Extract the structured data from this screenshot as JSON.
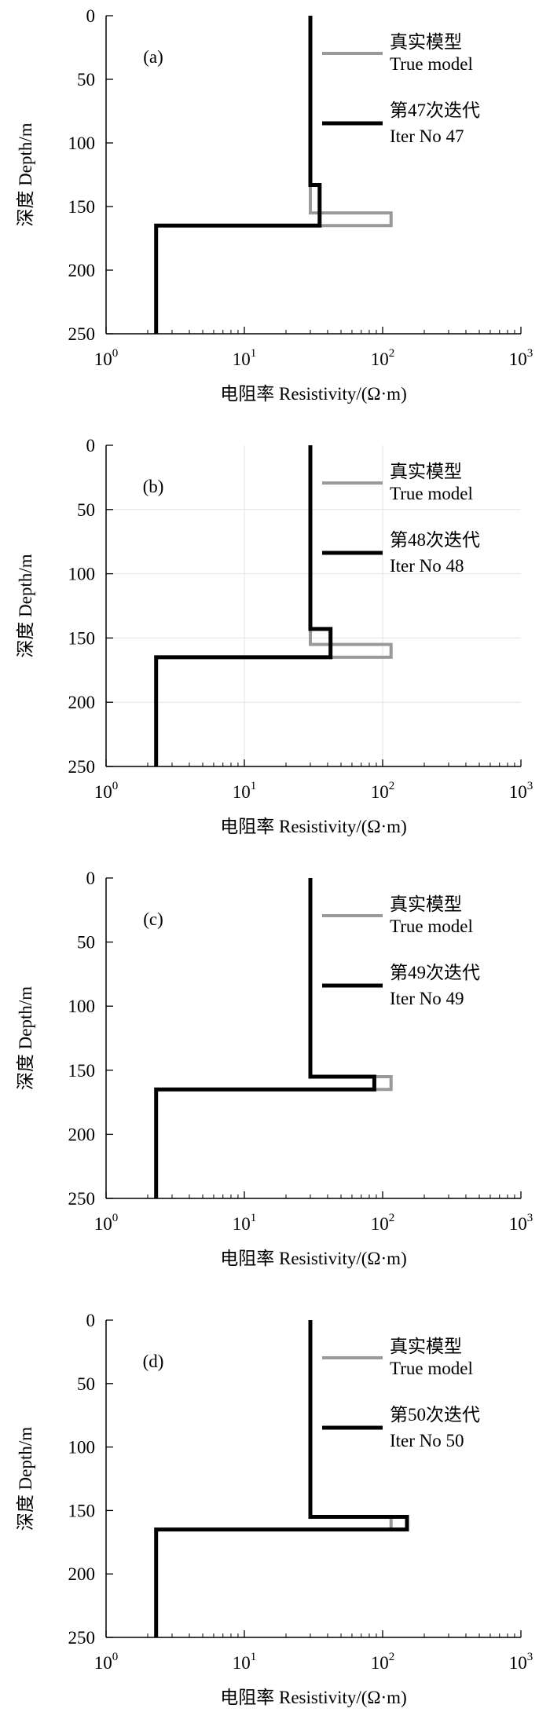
{
  "chart_data": [
    {
      "type": "line",
      "panel_label": "(a)",
      "xlabel": "电阻率 Resistivity/(Ω·m)",
      "ylabel": "深度 Depth/m",
      "xscale": "log",
      "xlim": [
        1,
        1000
      ],
      "ylim": [
        0,
        250
      ],
      "y_reversed": true,
      "xticks": [
        1,
        10,
        100,
        1000
      ],
      "xtick_labels": [
        {
          "base": "10",
          "exp": "0"
        },
        {
          "base": "10",
          "exp": "1"
        },
        {
          "base": "10",
          "exp": "2"
        },
        {
          "base": "10",
          "exp": "3"
        }
      ],
      "yticks": [
        0,
        50,
        100,
        150,
        200,
        250
      ],
      "ytick_labels": [
        "0",
        "50",
        "100",
        "150",
        "200",
        "250"
      ],
      "grid": false,
      "legend_position": "top-right",
      "series": [
        {
          "legend": [
            "真实模型",
            "True model"
          ],
          "color": "#9a9a9a",
          "x": [
            30,
            30,
            115,
            115,
            2.3,
            2.3
          ],
          "y": [
            0,
            155,
            155,
            165,
            165,
            250
          ]
        },
        {
          "legend": [
            "第47次迭代",
            "Iter No 47"
          ],
          "color": "#000000",
          "x": [
            30,
            30,
            35,
            35,
            2.3,
            2.3
          ],
          "y": [
            0,
            133,
            133,
            165,
            165,
            250
          ]
        }
      ]
    },
    {
      "type": "line",
      "panel_label": "(b)",
      "xlabel": "电阻率 Resistivity/(Ω·m)",
      "ylabel": "深度 Depth/m",
      "xscale": "log",
      "xlim": [
        1,
        1000
      ],
      "ylim": [
        0,
        250
      ],
      "y_reversed": true,
      "xticks": [
        1,
        10,
        100,
        1000
      ],
      "xtick_labels": [
        {
          "base": "10",
          "exp": "0"
        },
        {
          "base": "10",
          "exp": "1"
        },
        {
          "base": "10",
          "exp": "2"
        },
        {
          "base": "10",
          "exp": "3"
        }
      ],
      "yticks": [
        0,
        50,
        100,
        150,
        200,
        250
      ],
      "ytick_labels": [
        "0",
        "50",
        "100",
        "150",
        "200",
        "250"
      ],
      "grid": true,
      "legend_position": "top-right",
      "series": [
        {
          "legend": [
            "真实模型",
            "True model"
          ],
          "color": "#9a9a9a",
          "x": [
            30,
            30,
            115,
            115,
            2.3,
            2.3
          ],
          "y": [
            0,
            155,
            155,
            165,
            165,
            250
          ]
        },
        {
          "legend": [
            "第48次迭代",
            "Iter No 48"
          ],
          "color": "#000000",
          "x": [
            30,
            30,
            42,
            42,
            2.3,
            2.3
          ],
          "y": [
            0,
            143,
            143,
            165,
            165,
            250
          ]
        }
      ]
    },
    {
      "type": "line",
      "panel_label": "(c)",
      "xlabel": "电阻率 Resistivity/(Ω·m)",
      "ylabel": "深度 Depth/m",
      "xscale": "log",
      "xlim": [
        1,
        1000
      ],
      "ylim": [
        0,
        250
      ],
      "y_reversed": true,
      "xticks": [
        1,
        10,
        100,
        1000
      ],
      "xtick_labels": [
        {
          "base": "10",
          "exp": "0"
        },
        {
          "base": "10",
          "exp": "1"
        },
        {
          "base": "10",
          "exp": "2"
        },
        {
          "base": "10",
          "exp": "3"
        }
      ],
      "yticks": [
        0,
        50,
        100,
        150,
        200,
        250
      ],
      "ytick_labels": [
        "0",
        "50",
        "100",
        "150",
        "200",
        "250"
      ],
      "grid": false,
      "legend_position": "top-right",
      "series": [
        {
          "legend": [
            "真实模型",
            "True model"
          ],
          "color": "#9a9a9a",
          "x": [
            30,
            30,
            115,
            115,
            2.3,
            2.3
          ],
          "y": [
            0,
            155,
            155,
            165,
            165,
            250
          ]
        },
        {
          "legend": [
            "第49次迭代",
            "Iter No 49"
          ],
          "color": "#000000",
          "x": [
            30,
            30,
            87,
            87,
            2.3,
            2.3
          ],
          "y": [
            0,
            155,
            155,
            165,
            165,
            250
          ]
        }
      ]
    },
    {
      "type": "line",
      "panel_label": "(d)",
      "xlabel": "电阻率 Resistivity/(Ω·m)",
      "ylabel": "深度 Depth/m",
      "xscale": "log",
      "xlim": [
        1,
        1000
      ],
      "ylim": [
        0,
        250
      ],
      "y_reversed": true,
      "xticks": [
        1,
        10,
        100,
        1000
      ],
      "xtick_labels": [
        {
          "base": "10",
          "exp": "0"
        },
        {
          "base": "10",
          "exp": "1"
        },
        {
          "base": "10",
          "exp": "2"
        },
        {
          "base": "10",
          "exp": "3"
        }
      ],
      "yticks": [
        0,
        50,
        100,
        150,
        200,
        250
      ],
      "ytick_labels": [
        "0",
        "50",
        "100",
        "150",
        "200",
        "250"
      ],
      "grid": false,
      "legend_position": "top-right",
      "series": [
        {
          "legend": [
            "真实模型",
            "True model"
          ],
          "color": "#9a9a9a",
          "x": [
            30,
            30,
            115,
            115,
            2.3,
            2.3
          ],
          "y": [
            0,
            155,
            155,
            165,
            165,
            250
          ]
        },
        {
          "legend": [
            "第50次迭代",
            "Iter No 50"
          ],
          "color": "#000000",
          "x": [
            30,
            30,
            150,
            150,
            2.3,
            2.3
          ],
          "y": [
            0,
            155,
            155,
            165,
            165,
            250
          ]
        }
      ]
    }
  ]
}
